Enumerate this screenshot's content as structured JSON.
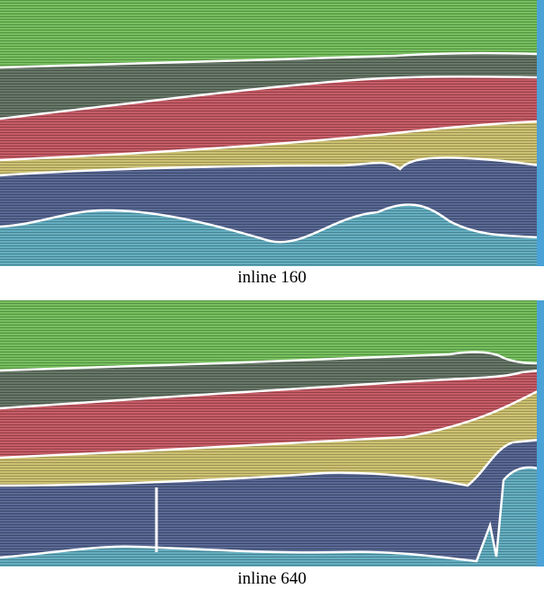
{
  "figure": {
    "panels": [
      {
        "caption": "inline 160"
      },
      {
        "caption": "inline 640"
      }
    ]
  },
  "colors": {
    "layer_1": "#6cbb52",
    "layer_2": "#5b6c5c",
    "layer_3": "#c0505b",
    "layer_4": "#c9bd68",
    "layer_5": "#4d5d8b",
    "layer_6": "#5aa8bc",
    "horizon_line": "#ffffff",
    "edge_strip": "#4aa2d6"
  }
}
